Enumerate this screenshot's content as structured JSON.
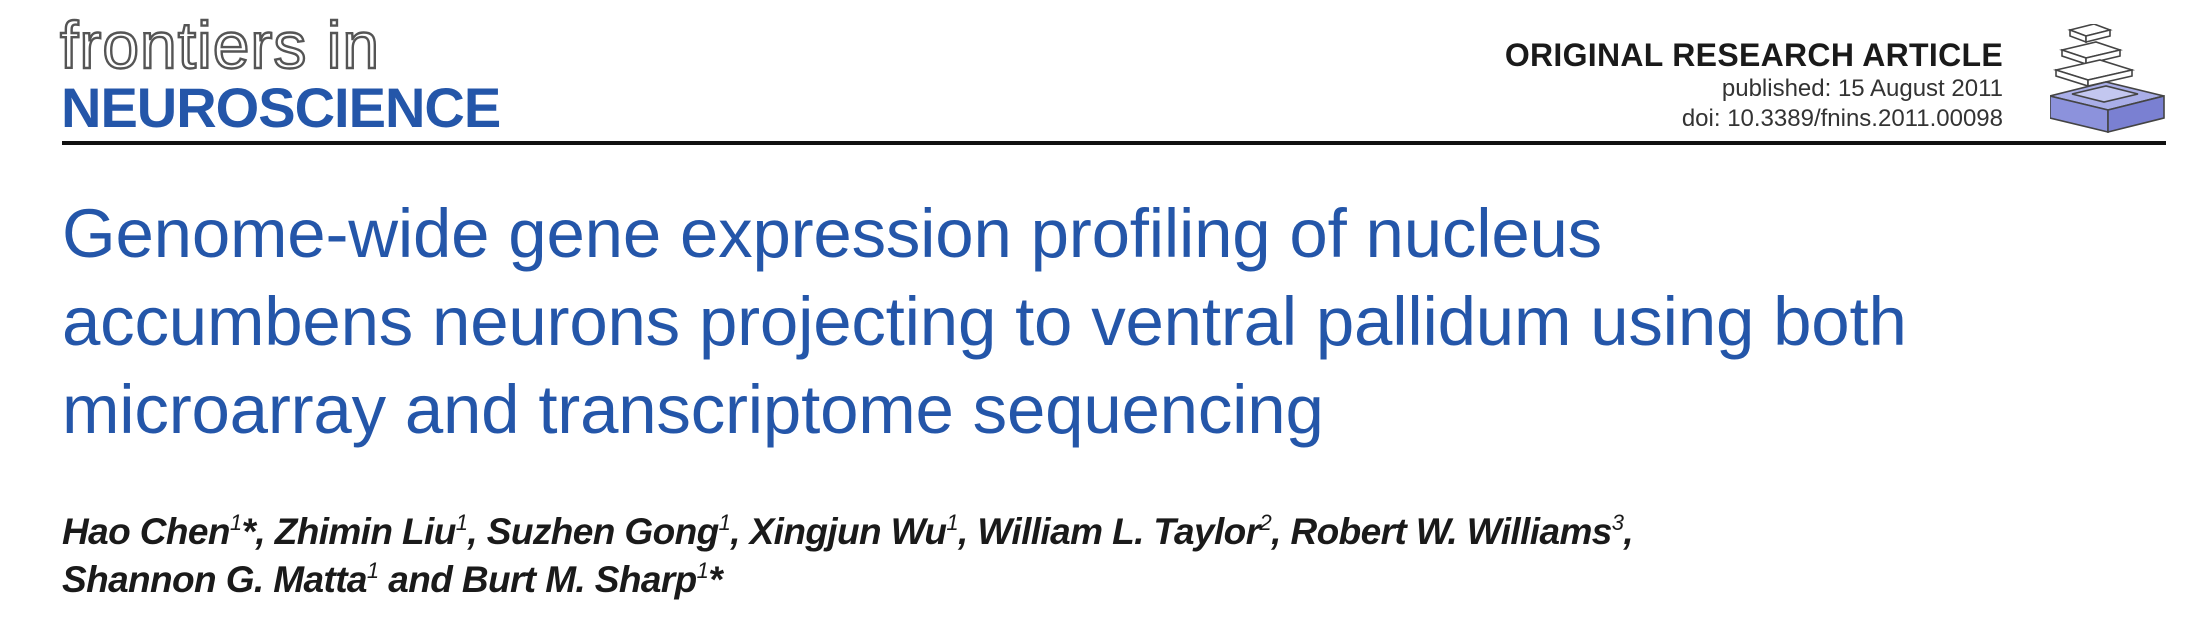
{
  "journal": {
    "logo_top": "frontiers in",
    "logo_bottom": "NEUROSCIENCE",
    "brand_color": "#2456a9"
  },
  "article": {
    "type": "ORIGINAL RESEARCH ARTICLE",
    "published": "published: 15 August 2011",
    "doi": "doi: 10.3389/fnins.2011.00098"
  },
  "title": {
    "line1": "Genome-wide gene expression profiling of nucleus",
    "line2": "accumbens neurons projecting to ventral pallidum using both",
    "line3": "microarray and transcriptome sequencing"
  },
  "authors": {
    "a1": "Hao Chen",
    "a1_sup": "1",
    "a1_mark": "*, ",
    "a2": "Zhimin Liu",
    "a2_sup": "1",
    "sep2": ", ",
    "a3": "Suzhen Gong",
    "a3_sup": "1",
    "sep3": ", ",
    "a4": "Xingjun Wu",
    "a4_sup": "1",
    "sep4": ", ",
    "a5": "William L. Taylor",
    "a5_sup": "2",
    "sep5": ", ",
    "a6": "Robert W. Williams",
    "a6_sup": "3",
    "sep6": ",",
    "a7": "Shannon G. Matta",
    "a7_sup": "1",
    "conj": " and ",
    "a8": "Burt M. Sharp",
    "a8_sup": "1",
    "a8_mark": "*"
  }
}
